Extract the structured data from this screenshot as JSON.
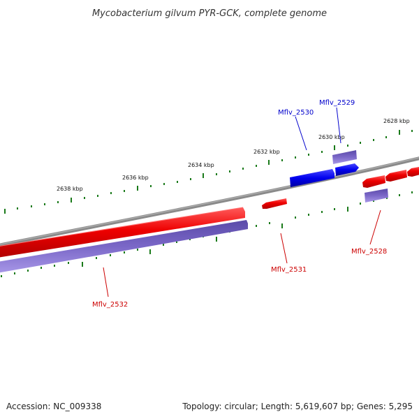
{
  "title": "Mycobacterium gilvum PYR-GCK, complete genome",
  "footer": {
    "accession": "Accession: NC_009338",
    "summary": "Topology: circular; Length: 5,619,607 bp; Genes: 5,295"
  },
  "scale_labels": {
    "kbp_2638": "2638 kbp",
    "kbp_2636": "2636 kbp",
    "kbp_2634": "2634 kbp",
    "kbp_2632": "2632 kbp",
    "kbp_2630": "2630 kbp",
    "kbp_2628": "2628 kbp"
  },
  "genes": {
    "mflv_2532": {
      "label": "Mflv_2532",
      "strand": "minus",
      "color": "#dd0000"
    },
    "mflv_2531": {
      "label": "Mflv_2531",
      "strand": "minus",
      "color": "#dd0000"
    },
    "mflv_2530": {
      "label": "Mflv_2530",
      "strand": "plus",
      "color": "#0000cc"
    },
    "mflv_2529": {
      "label": "Mflv_2529",
      "strand": "plus",
      "color": "#0000cc"
    },
    "mflv_2528": {
      "label": "Mflv_2528",
      "strand": "minus",
      "color": "#dd0000"
    }
  },
  "colors": {
    "gene_red": "#ee0000",
    "gene_blue": "#0000ee",
    "gene_purple": "#6a5acd",
    "backbone": "#808080",
    "tick_green": "#1a7a1a",
    "label_red": "#cc0000",
    "label_blue": "#0000cc"
  }
}
